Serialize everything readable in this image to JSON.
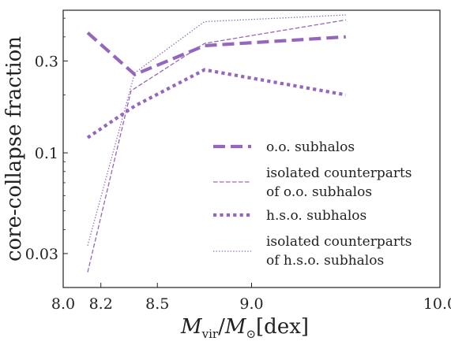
{
  "chart_data": {
    "type": "line",
    "xlabel": "M_vir/M_⊙[dex]",
    "ylabel": "core-collapse fraction",
    "xlim": [
      8.0,
      10.0
    ],
    "ylim": [
      0.02,
      0.55
    ],
    "yscale": "log",
    "x_ticks": [
      {
        "value": 8.0,
        "label": "8.0"
      },
      {
        "value": 8.2,
        "label": "8.2"
      },
      {
        "value": 8.5,
        "label": "8.5"
      },
      {
        "value": 9.0,
        "label": "9.0"
      },
      {
        "value": 10.0,
        "label": "10.0"
      }
    ],
    "y_ticks": [
      {
        "value": 0.03,
        "label": "0.03"
      },
      {
        "value": 0.1,
        "label": "0.1"
      },
      {
        "value": 0.3,
        "label": "0.3"
      }
    ],
    "legend_position": "lower-right",
    "color": "#9467bd",
    "series": [
      {
        "name": "o.o. subhalos",
        "style": "thick-dashed",
        "x": [
          8.13,
          8.38,
          8.75,
          9.5
        ],
        "y": [
          0.42,
          0.255,
          0.36,
          0.4
        ]
      },
      {
        "name": "isolated counterparts of o.o. subhalos",
        "style": "thin-dashed",
        "x": [
          8.13,
          8.36,
          8.75,
          9.5
        ],
        "y": [
          0.024,
          0.21,
          0.37,
          0.49
        ]
      },
      {
        "name": "h.s.o. subhalos",
        "style": "thick-dotted",
        "x": [
          8.13,
          8.38,
          8.75,
          9.5
        ],
        "y": [
          0.12,
          0.175,
          0.27,
          0.2
        ]
      },
      {
        "name": "isolated counterparts of h.s.o. subhalos",
        "style": "thin-dotted",
        "x": [
          8.13,
          8.38,
          8.75,
          9.5
        ],
        "y": [
          0.033,
          0.26,
          0.48,
          0.52
        ]
      }
    ],
    "legend": [
      {
        "line1": "o.o. subhalos",
        "line2": ""
      },
      {
        "line1": "isolated counterparts",
        "line2": "of o.o. subhalos"
      },
      {
        "line1": "h.s.o. subhalos",
        "line2": ""
      },
      {
        "line1": "isolated counterparts",
        "line2": "of h.s.o. subhalos"
      }
    ]
  }
}
